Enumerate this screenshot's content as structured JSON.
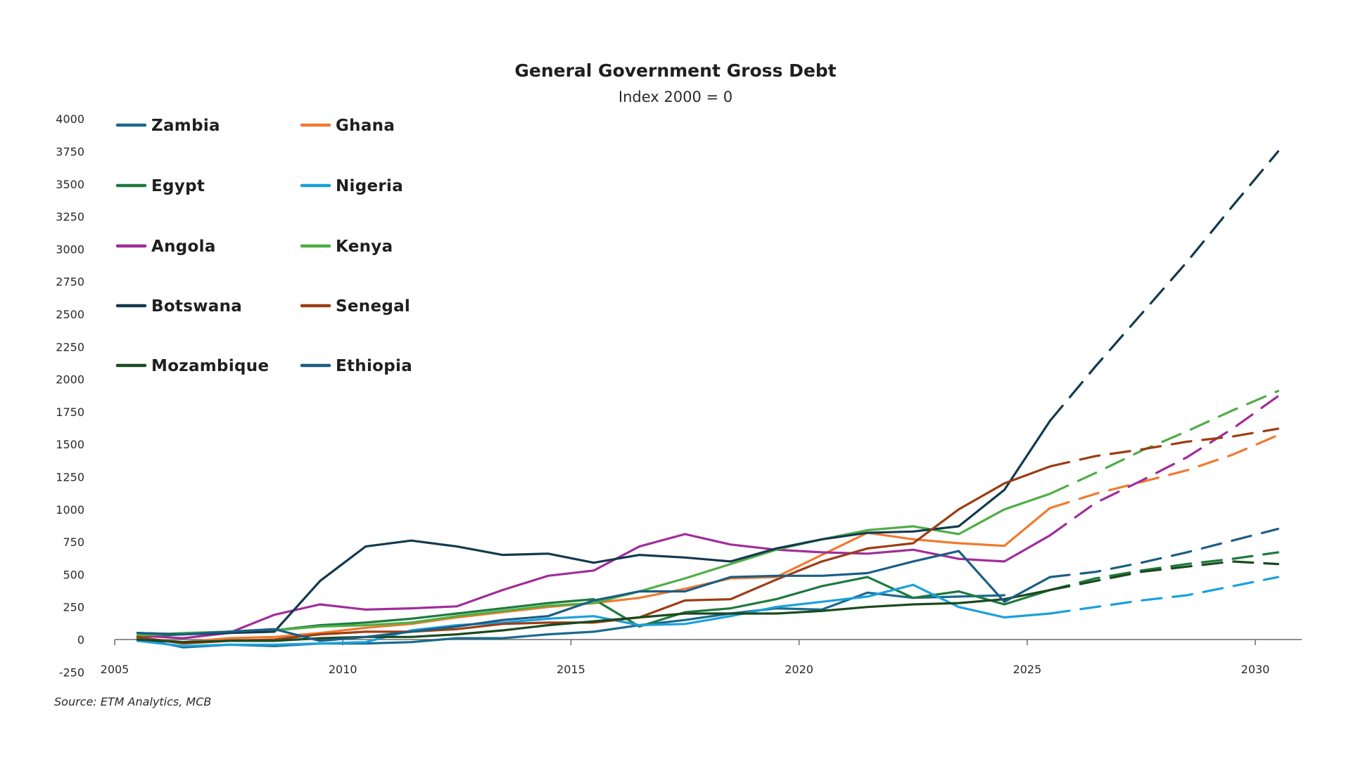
{
  "chart_data": {
    "type": "line",
    "title": "General Government Gross Debt",
    "subtitle": "Index 2000 = 0",
    "source": "Source: ETM Analytics, MCB",
    "xlabel": "",
    "ylabel": "",
    "xlim": [
      2005,
      2031
    ],
    "ylim": [
      -250,
      4000
    ],
    "x_ticks": [
      "2005",
      "2010",
      "2015",
      "2020",
      "2025",
      "2030"
    ],
    "y_ticks": [
      "-250",
      "0",
      "250",
      "500",
      "750",
      "1000",
      "1250",
      "1500",
      "1750",
      "2000",
      "2250",
      "2500",
      "2750",
      "3000",
      "3250",
      "3500",
      "3750",
      "4000"
    ],
    "grid": false,
    "legend_position": "top-left",
    "x": [
      2005.5,
      2006.5,
      2007.5,
      2008.5,
      2009.5,
      2010.5,
      2011.5,
      2012.5,
      2013.5,
      2014.5,
      2015.5,
      2016.5,
      2017.5,
      2018.5,
      2019.5,
      2020.5,
      2021.5,
      2022.5,
      2023.5,
      2024.5,
      2025.5,
      2026.5,
      2027.5,
      2028.5,
      2029.5,
      2030.5
    ],
    "forecast_start": 2025.5,
    "forecast_style": "dashed",
    "series": [
      {
        "name": "Zambia",
        "color": "#1a6a8e",
        "values": [
          10,
          -60,
          -40,
          -50,
          -30,
          -30,
          -20,
          10,
          10,
          40,
          60,
          110,
          150,
          200,
          240,
          230,
          360,
          320,
          330,
          340,
          null,
          null,
          null,
          null,
          null,
          null
        ]
      },
      {
        "name": "Ghana",
        "color": "#f07a30",
        "values": [
          10,
          -20,
          10,
          20,
          50,
          90,
          120,
          170,
          210,
          250,
          280,
          320,
          390,
          470,
          480,
          650,
          820,
          770,
          740,
          720,
          1010,
          1120,
          1210,
          1300,
          1420,
          1570
        ]
      },
      {
        "name": "Egypt",
        "color": "#1e7a3e",
        "values": [
          20,
          40,
          60,
          70,
          110,
          130,
          160,
          200,
          240,
          280,
          310,
          100,
          210,
          240,
          310,
          410,
          480,
          320,
          370,
          270,
          380,
          470,
          530,
          580,
          620,
          670
        ]
      },
      {
        "name": "Nigeria",
        "color": "#1aa0dc",
        "values": [
          -10,
          -50,
          -40,
          -40,
          -30,
          -20,
          70,
          110,
          130,
          160,
          180,
          110,
          120,
          180,
          250,
          290,
          330,
          420,
          250,
          170,
          200,
          250,
          300,
          340,
          410,
          480
        ]
      },
      {
        "name": "Angola",
        "color": "#a02d9a",
        "values": [
          30,
          10,
          50,
          190,
          270,
          230,
          240,
          255,
          380,
          490,
          530,
          715,
          810,
          730,
          690,
          670,
          660,
          690,
          620,
          600,
          800,
          1050,
          1220,
          1400,
          1620,
          1870
        ]
      },
      {
        "name": "Kenya",
        "color": "#4fae45",
        "values": [
          30,
          50,
          60,
          70,
          100,
          110,
          130,
          180,
          220,
          260,
          280,
          370,
          470,
          580,
          690,
          770,
          840,
          870,
          810,
          1000,
          1120,
          1280,
          1450,
          1600,
          1760,
          1910
        ]
      },
      {
        "name": "Botswana",
        "color": "#123a4e",
        "values": [
          50,
          40,
          50,
          60,
          450,
          715,
          760,
          715,
          650,
          660,
          590,
          650,
          630,
          600,
          700,
          770,
          820,
          830,
          870,
          1150,
          1680,
          2100,
          2500,
          2900,
          3330,
          3750
        ]
      },
      {
        "name": "Senegal",
        "color": "#9c3d14",
        "values": [
          20,
          -30,
          -10,
          0,
          40,
          60,
          60,
          80,
          120,
          130,
          130,
          170,
          300,
          310,
          460,
          600,
          700,
          740,
          1000,
          1200,
          1330,
          1410,
          1460,
          1520,
          1560,
          1620
        ]
      },
      {
        "name": "Mozambique",
        "color": "#1a4a1e",
        "values": [
          0,
          -20,
          -10,
          -10,
          10,
          20,
          20,
          40,
          70,
          110,
          140,
          170,
          200,
          200,
          200,
          220,
          250,
          270,
          280,
          310,
          380,
          450,
          520,
          560,
          600,
          580
        ]
      },
      {
        "name": "Ethiopia",
        "color": "#1a5e84",
        "values": [
          50,
          40,
          60,
          80,
          -10,
          20,
          60,
          100,
          150,
          180,
          300,
          370,
          370,
          480,
          490,
          490,
          510,
          600,
          680,
          290,
          480,
          520,
          590,
          670,
          760,
          850
        ]
      }
    ]
  }
}
